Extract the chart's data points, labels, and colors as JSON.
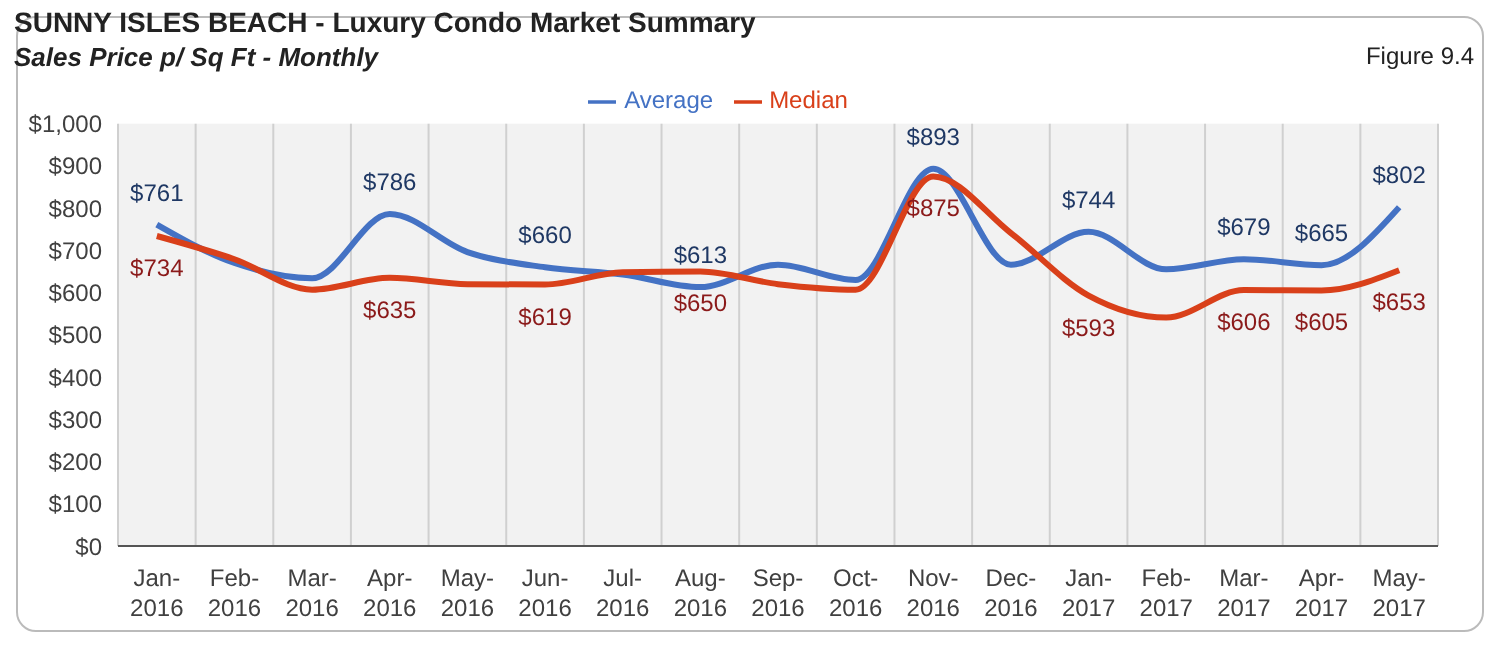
{
  "chart_data": {
    "type": "line",
    "title": "SUNNY ISLES BEACH - Luxury Condo Market Summary",
    "subtitle": "Sales Price  p/ Sq Ft - Monthly",
    "annotations": [
      "Figure 9.4"
    ],
    "categories": [
      "Jan-2016",
      "Feb-2016",
      "Mar-2016",
      "Apr-2016",
      "May-2016",
      "Jun-2016",
      "Jul-2016",
      "Aug-2016",
      "Sep-2016",
      "Oct-2016",
      "Nov-2016",
      "Dec-2016",
      "Jan-2017",
      "Feb-2017",
      "Mar-2017",
      "Apr-2017",
      "May-2017"
    ],
    "series": [
      {
        "name": "Average",
        "color": "#4472c4",
        "values": [
          761,
          670,
          634,
          786,
          696,
          660,
          643,
          613,
          666,
          630,
          893,
          666,
          744,
          655,
          679,
          665,
          802
        ],
        "value_labels": [
          "$761",
          null,
          null,
          "$786",
          null,
          "$660",
          null,
          "$613",
          null,
          null,
          "$893",
          null,
          "$744",
          null,
          "$679",
          "$665",
          "$802"
        ]
      },
      {
        "name": "Median",
        "color": "#d9401a",
        "values": [
          734,
          679,
          607,
          635,
          620,
          619,
          648,
          650,
          620,
          607,
          875,
          741,
          593,
          541,
          606,
          605,
          653
        ],
        "value_labels": [
          "$734",
          null,
          null,
          "$635",
          null,
          "$619",
          null,
          "$650",
          null,
          null,
          "$875",
          null,
          "$593",
          null,
          "$606",
          "$605",
          "$653"
        ]
      }
    ],
    "ylim": [
      0,
      1000
    ],
    "yticks": [
      {
        "value": 0,
        "label": "$0"
      },
      {
        "value": 100,
        "label": "$100"
      },
      {
        "value": 200,
        "label": "$200"
      },
      {
        "value": 300,
        "label": "$300"
      },
      {
        "value": 400,
        "label": "$400"
      },
      {
        "value": 500,
        "label": "$500"
      },
      {
        "value": 600,
        "label": "$600"
      },
      {
        "value": 700,
        "label": "$700"
      },
      {
        "value": 800,
        "label": "$800"
      },
      {
        "value": 900,
        "label": "$900"
      },
      {
        "value": 1000,
        "label": "$1,000"
      }
    ],
    "grid": "x",
    "legend": "top",
    "marker": "none",
    "line_style": "solid"
  }
}
